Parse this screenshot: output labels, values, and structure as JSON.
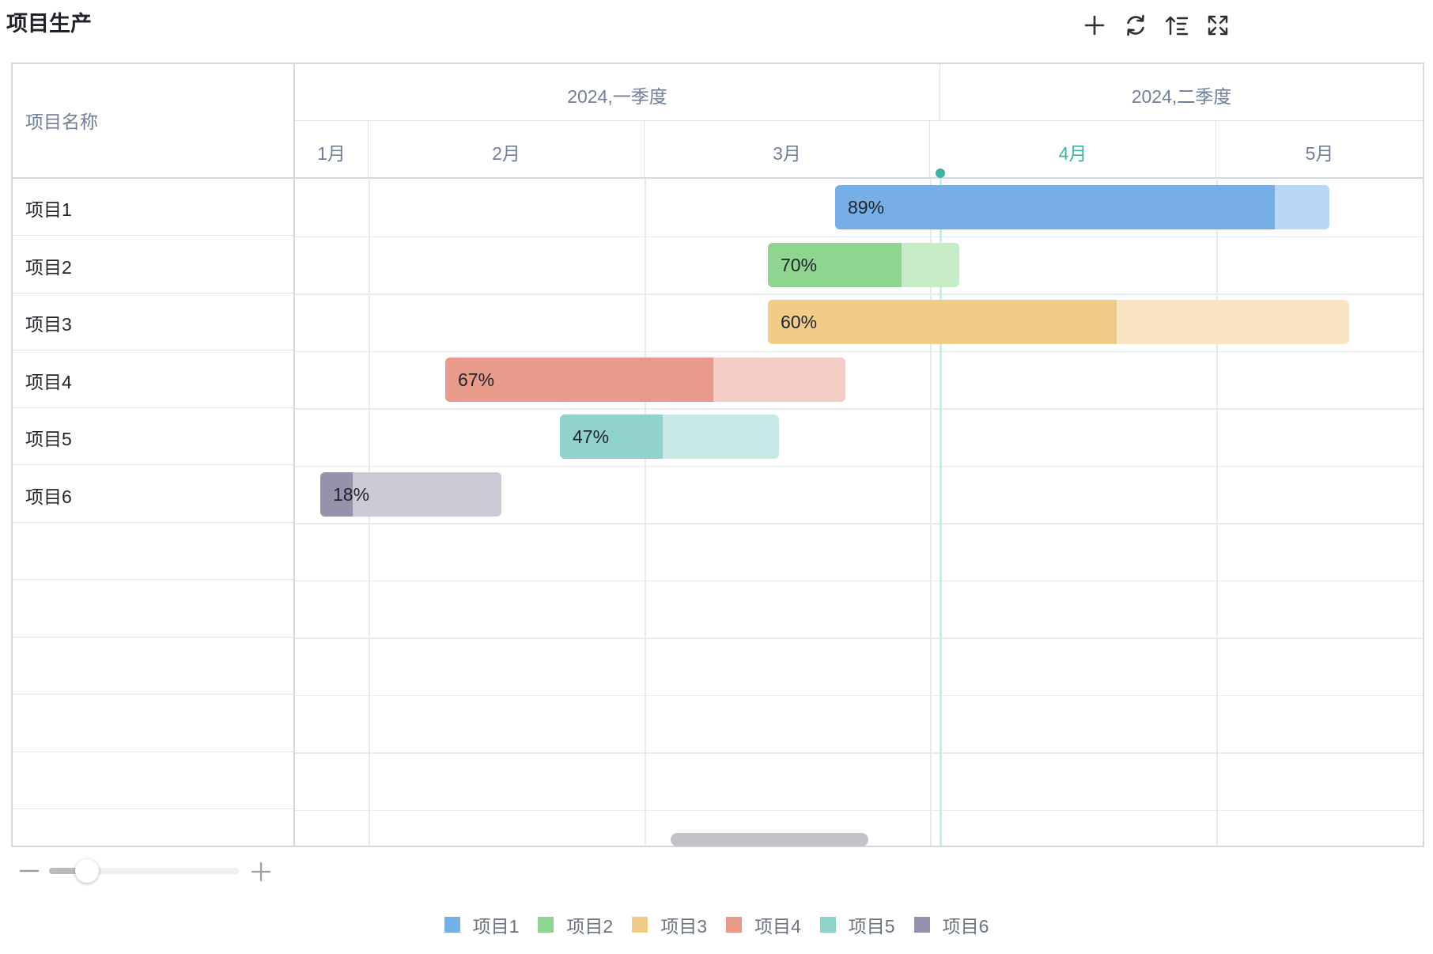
{
  "title": "项目生产",
  "toolbar": [
    {
      "name": "add-icon",
      "tooltip": "新增"
    },
    {
      "name": "refresh-icon",
      "tooltip": "刷新"
    },
    {
      "name": "sort-icon",
      "tooltip": "排序"
    },
    {
      "name": "fullscreen-icon",
      "tooltip": "全屏"
    }
  ],
  "table": {
    "name_header": "项目名称",
    "quarters": [
      "2024,一季度",
      "2024,二季度"
    ],
    "months": [
      {
        "label": "1月",
        "current": false
      },
      {
        "label": "2月",
        "current": false
      },
      {
        "label": "3月",
        "current": false
      },
      {
        "label": "4月",
        "current": true
      },
      {
        "label": "5月",
        "current": false
      }
    ],
    "current_color": "#3eb3a3"
  },
  "rows": [
    {
      "name": "项目1",
      "progress": 89,
      "progress_label": "89%",
      "color": "#76aee6",
      "light": "#b9d6f3"
    },
    {
      "name": "项目2",
      "progress": 70,
      "progress_label": "70%",
      "color": "#8fd48f",
      "light": "#c7ebc7"
    },
    {
      "name": "项目3",
      "progress": 60,
      "progress_label": "60%",
      "color": "#f1cc88",
      "light": "#f8e5c3"
    },
    {
      "name": "项目4",
      "progress": 67,
      "progress_label": "67%",
      "color": "#ea9a8b",
      "light": "#f4ccc5"
    },
    {
      "name": "项目5",
      "progress": 47,
      "progress_label": "47%",
      "color": "#8fd3cc",
      "light": "#c7e9e6"
    },
    {
      "name": "项目6",
      "progress": 18,
      "progress_label": "18%",
      "color": "#9593ab",
      "light": "#cacad5"
    }
  ],
  "zoom": {
    "value": 0.2
  },
  "legend": [
    {
      "label": "项目1",
      "color": "#76aee6"
    },
    {
      "label": "项目2",
      "color": "#8fd48f"
    },
    {
      "label": "项目3",
      "color": "#f1cc88"
    },
    {
      "label": "项目4",
      "color": "#ea9a8b"
    },
    {
      "label": "项目5",
      "color": "#8fd3cc"
    },
    {
      "label": "项目6",
      "color": "#9593ab"
    }
  ]
}
